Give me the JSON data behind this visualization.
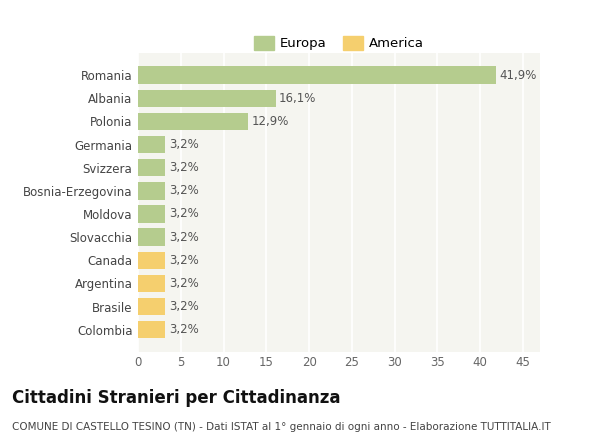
{
  "categories": [
    "Colombia",
    "Brasile",
    "Argentina",
    "Canada",
    "Slovacchia",
    "Moldova",
    "Bosnia-Erzegovina",
    "Svizzera",
    "Germania",
    "Polonia",
    "Albania",
    "Romania"
  ],
  "values": [
    3.2,
    3.2,
    3.2,
    3.2,
    3.2,
    3.2,
    3.2,
    3.2,
    3.2,
    12.9,
    16.1,
    41.9
  ],
  "labels": [
    "3,2%",
    "3,2%",
    "3,2%",
    "3,2%",
    "3,2%",
    "3,2%",
    "3,2%",
    "3,2%",
    "3,2%",
    "12,9%",
    "16,1%",
    "41,9%"
  ],
  "colors": [
    "#f5cf6e",
    "#f5cf6e",
    "#f5cf6e",
    "#f5cf6e",
    "#b5cc8e",
    "#b5cc8e",
    "#b5cc8e",
    "#b5cc8e",
    "#b5cc8e",
    "#b5cc8e",
    "#b5cc8e",
    "#b5cc8e"
  ],
  "europa_color": "#b5cc8e",
  "america_color": "#f5cf6e",
  "background_color": "#ffffff",
  "plot_bg_color": "#f5f5f0",
  "grid_color": "#ffffff",
  "title": "Cittadini Stranieri per Cittadinanza",
  "subtitle": "COMUNE DI CASTELLO TESINO (TN) - Dati ISTAT al 1° gennaio di ogni anno - Elaborazione TUTTITALIA.IT",
  "xlim": [
    0,
    47
  ],
  "xticks": [
    0,
    5,
    10,
    15,
    20,
    25,
    30,
    35,
    40,
    45
  ],
  "legend_europa": "Europa",
  "legend_america": "America",
  "title_fontsize": 12,
  "subtitle_fontsize": 7.5,
  "label_fontsize": 8.5,
  "tick_fontsize": 8.5,
  "legend_fontsize": 9.5,
  "bar_height": 0.75
}
